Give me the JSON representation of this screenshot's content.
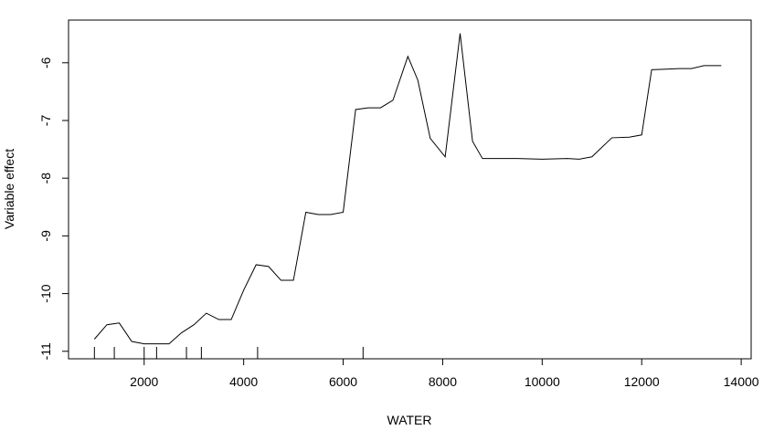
{
  "chart_data": {
    "type": "line",
    "x_label": "WATER",
    "y_label": "Variable effect",
    "x": [
      1000,
      1250,
      1500,
      1750,
      2000,
      2250,
      2500,
      2750,
      3000,
      3250,
      3500,
      3750,
      4000,
      4250,
      4500,
      4750,
      5000,
      5250,
      5500,
      5750,
      6000,
      6250,
      6500,
      6750,
      7000,
      7300,
      7500,
      7750,
      8050,
      8350,
      8600,
      8800,
      9000,
      9500,
      10000,
      10500,
      10750,
      11000,
      11400,
      11750,
      12000,
      12200,
      12500,
      12750,
      13000,
      13250,
      13600
    ],
    "series": [
      {
        "color": "#000000",
        "values": [
          -10.79,
          -10.54,
          -10.51,
          -10.83,
          -10.87,
          -10.87,
          -10.87,
          -10.68,
          -10.54,
          -10.34,
          -10.45,
          -10.45,
          -9.94,
          -9.5,
          -9.53,
          -9.77,
          -9.77,
          -8.59,
          -8.63,
          -8.63,
          -8.59,
          -6.81,
          -6.78,
          -6.78,
          -6.65,
          -5.89,
          -6.3,
          -7.31,
          -7.63,
          -5.49,
          -7.36,
          -7.66,
          -7.66,
          -7.66,
          -7.67,
          -7.66,
          -7.67,
          -7.63,
          -7.3,
          -7.29,
          -7.25,
          -6.12,
          -6.11,
          -6.1,
          -6.1,
          -6.05,
          -6.05
        ]
      }
    ],
    "rug": [
      1000,
      1400,
      2000,
      2250,
      2850,
      3150,
      4280,
      6400
    ],
    "xlim": [
      480,
      14200
    ],
    "ylim": [
      -11.13,
      -5.26
    ],
    "xticks": [
      2000,
      4000,
      6000,
      8000,
      10000,
      12000,
      14000
    ],
    "yticks": [
      -11,
      -10,
      -9,
      -8,
      -7,
      -6
    ]
  }
}
